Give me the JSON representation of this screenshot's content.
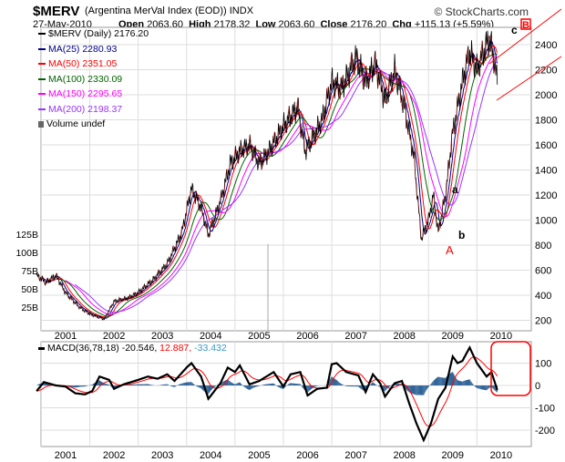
{
  "header": {
    "symbol": "$MERV",
    "name": "(Argentina MerVal Index (EOD))",
    "exchange": "INDX",
    "brand": "© StockCharts.com",
    "date": "27-May-2010",
    "open_label": "Open",
    "open": "2063.60",
    "high_label": "High",
    "high": "2178.32",
    "low_label": "Low",
    "low": "2063.60",
    "close_label": "Close",
    "close": "2176.20",
    "chg_label": "Chg",
    "chg": "+115.13 (+5.59%)"
  },
  "legend": [
    {
      "label": "$MERV (Daily) 2176.20",
      "color": "#000000"
    },
    {
      "label": "MA(25) 2280.93",
      "color": "#00008b"
    },
    {
      "label": "MA(50) 2351.05",
      "color": "#ff0000"
    },
    {
      "label": "MA(100) 2330.09",
      "color": "#006400"
    },
    {
      "label": "MA(150) 2295.65",
      "color": "#ff00ff"
    },
    {
      "label": "MA(200) 2198.37",
      "color": "#9933ff"
    },
    {
      "label": "Volume undef",
      "color": "#666666"
    }
  ],
  "macd_legend": {
    "label": "MACD(36,78,18)",
    "macd": "-20.546,",
    "signal": "12.887,",
    "hist": "-33.432"
  },
  "annotations": {
    "A": "A",
    "a": "a",
    "b": "b",
    "c": "c",
    "B": "B"
  },
  "chart_data": [
    {
      "type": "line",
      "title": "$MERV (Daily)",
      "ylim": [
        200,
        2550
      ],
      "yticks": [
        200,
        400,
        600,
        800,
        1000,
        1200,
        1400,
        1600,
        1800,
        2000,
        2200,
        2400
      ],
      "volume_ticks": [
        "25B",
        "50B",
        "75B",
        "100B",
        "125B"
      ],
      "xticks": [
        "2001",
        "2002",
        "2003",
        "2004",
        "2005",
        "2006",
        "2007",
        "2008",
        "2009",
        "2010"
      ],
      "series": {
        "price": [
          [
            2000.9,
            560
          ],
          [
            2001.1,
            500
          ],
          [
            2001.3,
            560
          ],
          [
            2001.5,
            420
          ],
          [
            2001.8,
            300
          ],
          [
            2002.0,
            250
          ],
          [
            2002.3,
            210
          ],
          [
            2002.5,
            350
          ],
          [
            2002.8,
            380
          ],
          [
            2003.0,
            420
          ],
          [
            2003.3,
            520
          ],
          [
            2003.6,
            650
          ],
          [
            2003.9,
            900
          ],
          [
            2004.1,
            1250
          ],
          [
            2004.3,
            1100
          ],
          [
            2004.45,
            880
          ],
          [
            2004.7,
            1150
          ],
          [
            2004.9,
            1450
          ],
          [
            2005.1,
            1550
          ],
          [
            2005.3,
            1600
          ],
          [
            2005.5,
            1450
          ],
          [
            2005.7,
            1550
          ],
          [
            2006.0,
            1750
          ],
          [
            2006.3,
            1900
          ],
          [
            2006.45,
            1550
          ],
          [
            2006.6,
            1650
          ],
          [
            2006.8,
            1800
          ],
          [
            2007.0,
            2100
          ],
          [
            2007.2,
            2050
          ],
          [
            2007.5,
            2300
          ],
          [
            2007.7,
            2100
          ],
          [
            2007.9,
            2250
          ],
          [
            2008.1,
            1950
          ],
          [
            2008.3,
            2200
          ],
          [
            2008.5,
            1900
          ],
          [
            2008.7,
            1500
          ],
          [
            2008.85,
            850
          ],
          [
            2009.0,
            1000
          ],
          [
            2009.1,
            1200
          ],
          [
            2009.2,
            900
          ],
          [
            2009.35,
            1200
          ],
          [
            2009.5,
            1700
          ],
          [
            2009.7,
            2100
          ],
          [
            2009.85,
            2350
          ],
          [
            2010.0,
            2200
          ],
          [
            2010.15,
            2350
          ],
          [
            2010.25,
            2450
          ],
          [
            2010.35,
            2300
          ],
          [
            2010.42,
            2100
          ]
        ]
      },
      "ma_periods": [
        25,
        50,
        100,
        150,
        200
      ]
    },
    {
      "type": "line",
      "title": "MACD(36,78,18)",
      "ylim": [
        -270,
        190
      ],
      "yticks": [
        -200,
        -100,
        0,
        100
      ],
      "xticks": [
        "2001",
        "2002",
        "2003",
        "2004",
        "2005",
        "2006",
        "2007",
        "2008",
        "2009",
        "2010"
      ],
      "macd": [
        [
          2000.9,
          -25
        ],
        [
          2001.05,
          15
        ],
        [
          2001.3,
          0
        ],
        [
          2001.5,
          -5
        ],
        [
          2001.7,
          -35
        ],
        [
          2001.9,
          -40
        ],
        [
          2002.05,
          -25
        ],
        [
          2002.2,
          40
        ],
        [
          2002.4,
          25
        ],
        [
          2002.5,
          -15
        ],
        [
          2002.7,
          5
        ],
        [
          2003.0,
          25
        ],
        [
          2003.2,
          40
        ],
        [
          2003.4,
          30
        ],
        [
          2003.6,
          50
        ],
        [
          2003.75,
          20
        ],
        [
          2004.0,
          80
        ],
        [
          2004.1,
          100
        ],
        [
          2004.3,
          40
        ],
        [
          2004.45,
          -60
        ],
        [
          2004.7,
          10
        ],
        [
          2004.85,
          80
        ],
        [
          2005.0,
          60
        ],
        [
          2005.1,
          90
        ],
        [
          2005.3,
          5
        ],
        [
          2005.5,
          20
        ],
        [
          2005.8,
          60
        ],
        [
          2006.0,
          -5
        ],
        [
          2006.15,
          50
        ],
        [
          2006.35,
          60
        ],
        [
          2006.5,
          -45
        ],
        [
          2006.7,
          -15
        ],
        [
          2006.9,
          -10
        ],
        [
          2007.0,
          95
        ],
        [
          2007.1,
          100
        ],
        [
          2007.3,
          60
        ],
        [
          2007.55,
          45
        ],
        [
          2007.7,
          -30
        ],
        [
          2007.85,
          50
        ],
        [
          2008.0,
          10
        ],
        [
          2008.1,
          -50
        ],
        [
          2008.3,
          10
        ],
        [
          2008.45,
          20
        ],
        [
          2008.6,
          -80
        ],
        [
          2008.75,
          -170
        ],
        [
          2008.9,
          -245
        ],
        [
          2009.05,
          -170
        ],
        [
          2009.2,
          -60
        ],
        [
          2009.35,
          -10
        ],
        [
          2009.5,
          130
        ],
        [
          2009.6,
          100
        ],
        [
          2009.7,
          110
        ],
        [
          2009.85,
          170
        ],
        [
          2010.0,
          100
        ],
        [
          2010.1,
          70
        ],
        [
          2010.2,
          40
        ],
        [
          2010.3,
          60
        ],
        [
          2010.42,
          -20
        ]
      ]
    }
  ]
}
